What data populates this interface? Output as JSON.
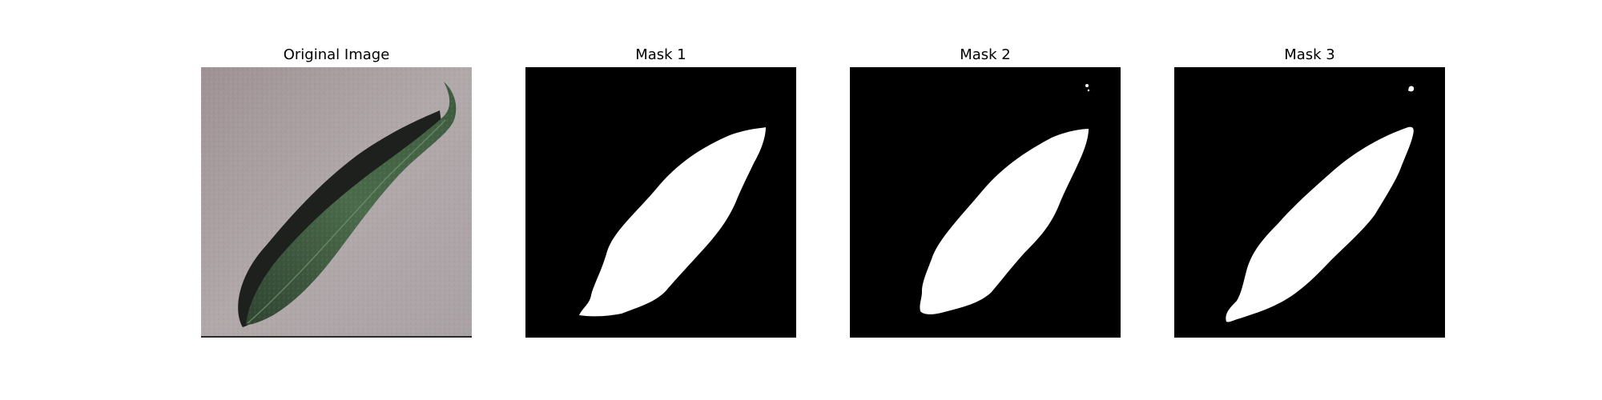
{
  "figure": {
    "panels": [
      {
        "title": "Original Image"
      },
      {
        "title": "Mask 1"
      },
      {
        "title": "Mask 2"
      },
      {
        "title": "Mask 3"
      }
    ]
  },
  "colors": {
    "background": "#ffffff",
    "photo_surface": "#a89ea0",
    "leaf_green": "#3f5c40",
    "leaf_shadow": "#1e201d",
    "mask_background": "#000000",
    "mask_foreground": "#ffffff"
  }
}
